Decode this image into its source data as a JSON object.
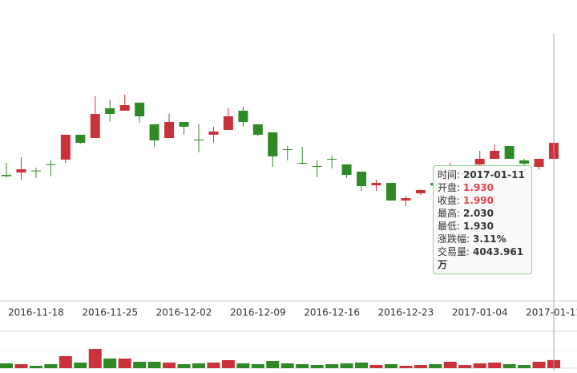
{
  "chart_data": {
    "type": "candlestick",
    "categories": [
      null,
      null,
      "2016-11-18",
      null,
      null,
      null,
      null,
      "2016-11-25",
      null,
      null,
      null,
      null,
      "2016-12-02",
      null,
      null,
      null,
      null,
      "2016-12-09",
      null,
      null,
      null,
      null,
      "2016-12-16",
      null,
      null,
      null,
      null,
      "2016-12-23",
      null,
      null,
      null,
      null,
      "2017-01-04",
      null,
      null,
      null,
      null,
      "2017-01-11"
    ],
    "open": [
      1.87,
      1.879,
      1.886,
      1.91,
      1.927,
      2.02,
      2.008,
      2.119,
      2.11,
      2.14,
      2.059,
      2.008,
      2.068,
      2.002,
      2.02,
      2.038,
      2.11,
      2.059,
      2.029,
      1.966,
      1.915,
      1.903,
      1.93,
      1.909,
      1.882,
      1.831,
      1.84,
      1.774,
      1.801,
      1.84,
      1.85,
      1.87,
      1.909,
      1.93,
      1.978,
      1.924,
      1.9,
      1.93
    ],
    "close": [
      1.865,
      1.891,
      1.883,
      1.907,
      2.02,
      1.99,
      2.098,
      2.098,
      2.131,
      2.089,
      1.999,
      2.068,
      2.05,
      1.999,
      2.032,
      2.089,
      2.068,
      2.02,
      1.939,
      1.963,
      1.912,
      1.9,
      1.927,
      1.87,
      1.828,
      1.84,
      1.774,
      1.783,
      1.813,
      1.83,
      1.87,
      1.88,
      1.93,
      1.96,
      1.93,
      1.912,
      1.93,
      1.99
    ],
    "high": [
      1.915,
      1.936,
      1.897,
      1.924,
      2.02,
      2.02,
      2.164,
      2.152,
      2.17,
      2.14,
      2.059,
      2.098,
      2.068,
      2.059,
      2.05,
      2.119,
      2.125,
      2.059,
      2.029,
      1.978,
      1.975,
      1.924,
      1.942,
      1.909,
      1.882,
      1.852,
      1.84,
      1.792,
      1.816,
      1.85,
      1.915,
      1.89,
      1.96,
      1.984,
      1.978,
      1.93,
      1.93,
      2.03
    ],
    "low": [
      1.86,
      1.852,
      1.858,
      1.864,
      1.915,
      1.985,
      2.008,
      2.07,
      2.11,
      2.065,
      1.975,
      2.008,
      2.02,
      1.954,
      1.99,
      2.038,
      2.05,
      2.014,
      1.9,
      1.924,
      1.909,
      1.861,
      1.894,
      1.858,
      1.81,
      1.81,
      1.774,
      1.753,
      1.795,
      1.82,
      1.85,
      1.86,
      1.9,
      1.93,
      1.93,
      1.9,
      1.89,
      1.93
    ],
    "volume": [
      2400,
      2000,
      1200,
      2000,
      6000,
      2800,
      9600,
      4800,
      4800,
      3200,
      3200,
      2800,
      2000,
      2400,
      2800,
      4000,
      2400,
      2000,
      3600,
      2400,
      2000,
      1600,
      2000,
      2400,
      2800,
      1600,
      2000,
      1200,
      1600,
      2000,
      3200,
      1600,
      2400,
      2800,
      2000,
      1600,
      3200,
      4043.961
    ],
    "ylim": [
      1.399,
      2.524
    ],
    "volume_lim": [
      0,
      16000
    ],
    "up_color": "#c9323b",
    "down_color": "#2f8a25",
    "tooltip": {
      "rows": [
        {
          "label": "时间:",
          "value": "2017-01-11"
        },
        {
          "label": "开盘:",
          "value": "1.930",
          "color": "#e8414b"
        },
        {
          "label": "收盘:",
          "value": "1.990",
          "color": "#e8414b"
        },
        {
          "label": "最高:",
          "value": "2.030"
        },
        {
          "label": "最低:",
          "value": "1.930"
        },
        {
          "label": "涨跌幅:",
          "value": "3.11%"
        },
        {
          "label": "交易量:",
          "value": "4043.961万"
        }
      ]
    }
  }
}
